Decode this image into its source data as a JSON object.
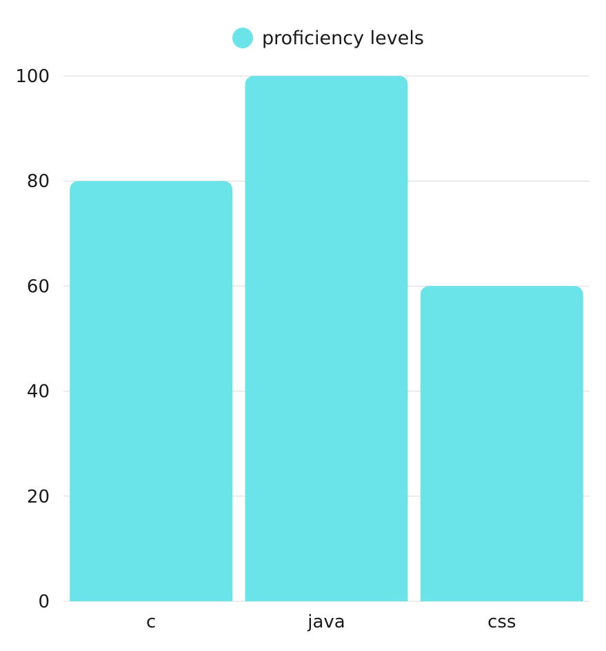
{
  "chart_data": {
    "type": "bar",
    "categories": [
      "c",
      "java",
      "css"
    ],
    "series": [
      {
        "name": "proficiency levels",
        "values": [
          80,
          100,
          60
        ]
      }
    ],
    "ylim": [
      0,
      100
    ],
    "yticks": [
      0,
      20,
      40,
      60,
      80,
      100
    ],
    "grid": true,
    "legend_position": "top-center",
    "bar_color": "#6ae4e8",
    "title": "",
    "xlabel": "",
    "ylabel": ""
  }
}
